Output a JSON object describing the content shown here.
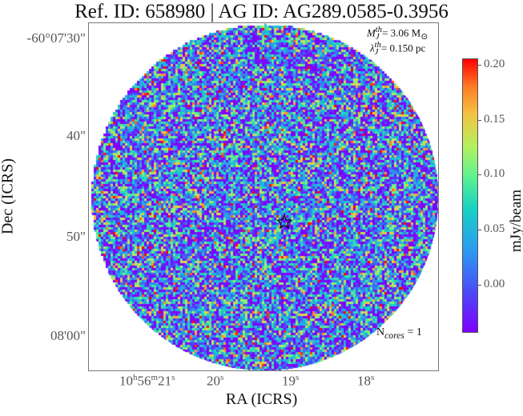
{
  "chart_data": {
    "type": "heatmap",
    "title": "Ref. ID: 658980 | AG ID: AG289.0585-0.3956",
    "xlabel": "RA (ICRS)",
    "ylabel": "Dec (ICRS)",
    "x_ticks": [
      "10h56m21s",
      "20s",
      "19s",
      "18s"
    ],
    "y_ticks": [
      "-60°07'30\"",
      "40\"",
      "50\"",
      "08'00\""
    ],
    "colorbar": {
      "label": "mJy/beam",
      "ticks": [
        "0.20",
        "0.15",
        "0.10",
        "0.05",
        "0.00"
      ],
      "range": [
        -0.045,
        0.205
      ],
      "colormap": "rainbow"
    },
    "annotations": {
      "mass": "M",
      "mass_sub": "J",
      "mass_sup": "th",
      "mass_value": "= 3.06 M",
      "mass_unit": "⊙",
      "lambda": "λ",
      "lambda_sub": "J",
      "lambda_sup": "th",
      "lambda_value": "= 0.150 pc",
      "ncores": "N",
      "ncores_sub": "cores",
      "ncores_value": " = 1"
    },
    "markers": [
      {
        "symbol": "star",
        "ra": "10h56m19s",
        "dec": "-60°07'47\""
      }
    ],
    "image_shape": "circular primary-beam field of noise-dominated emission"
  }
}
